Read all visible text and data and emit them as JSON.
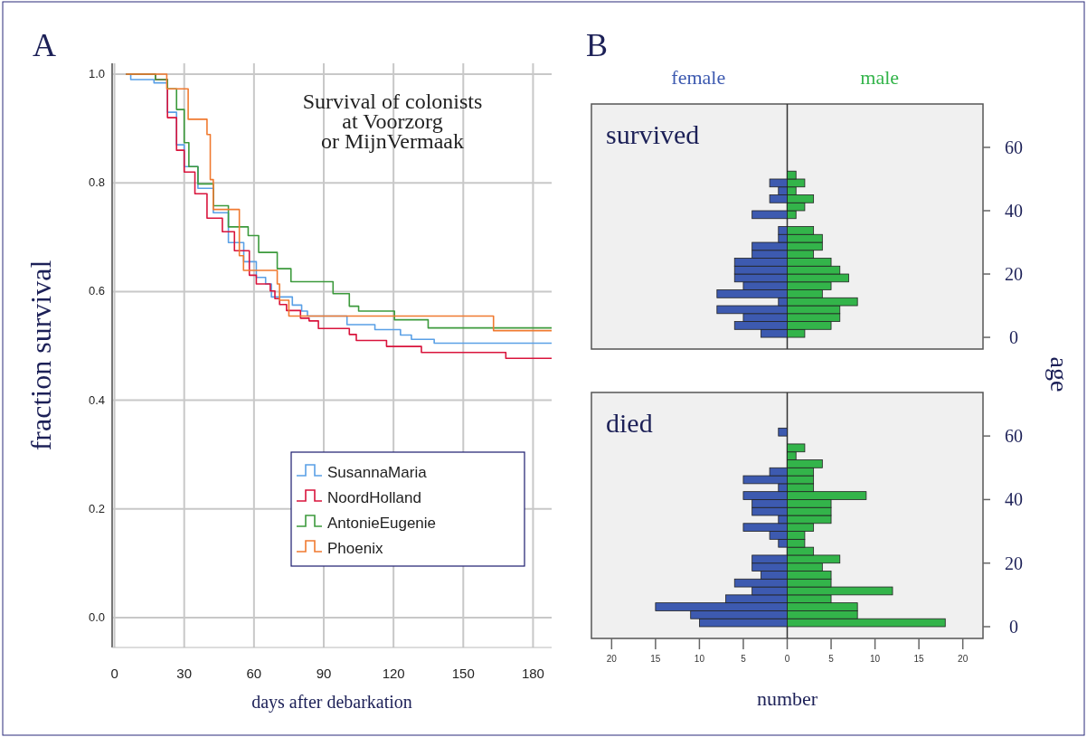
{
  "chart_data": [
    {
      "type": "step",
      "xlabel": "days after debarkation",
      "ylabel": "fraction survival",
      "annotations": [
        "A",
        "Survival of colonists\nat Voorzorg\nor MijnVermaak"
      ],
      "xlim": [
        -1,
        188
      ],
      "ylim": [
        -0.055,
        1.02
      ],
      "xticks": [
        0,
        30,
        60,
        90,
        120,
        150,
        180
      ],
      "yticks": [
        {
          "value": 0,
          "label": "0.0"
        },
        {
          "value": 0.2,
          "label": "0.2"
        },
        {
          "value": 0.4,
          "label": "0.4"
        },
        {
          "value": 0.6,
          "label": "0.6"
        },
        {
          "value": 0.8,
          "label": "0.8"
        },
        {
          "value": 1,
          "label": "1.0"
        }
      ],
      "grid": true,
      "legend": "bottom right",
      "series": [
        {
          "name": "SusannaMaria",
          "color": "#5aa0e6",
          "x": [
            5,
            7,
            17,
            22.8,
            26.7,
            30,
            35.9,
            42.5,
            49,
            55.6,
            61,
            65,
            67.5,
            76.5,
            80.5,
            83,
            100,
            112,
            123,
            127.7,
            137.5,
            188
          ],
          "values": [
            1,
            0.99,
            0.984,
            0.93,
            0.87,
            0.83,
            0.79,
            0.745,
            0.69,
            0.655,
            0.626,
            0.614,
            0.59,
            0.575,
            0.564,
            0.555,
            0.539,
            0.53,
            0.52,
            0.512,
            0.505,
            0.505
          ]
        },
        {
          "name": "NoordHolland",
          "color": "#d9143c",
          "x": [
            5,
            17.6,
            22.8,
            26.7,
            30,
            34.6,
            39.8,
            46.4,
            51.6,
            58,
            61,
            67,
            69,
            71,
            74,
            80,
            83.7,
            87.7,
            101,
            104,
            117,
            132,
            168.3,
            188
          ],
          "values": [
            1,
            0.99,
            0.92,
            0.86,
            0.82,
            0.78,
            0.735,
            0.71,
            0.675,
            0.63,
            0.614,
            0.601,
            0.587,
            0.576,
            0.565,
            0.551,
            0.546,
            0.532,
            0.521,
            0.51,
            0.499,
            0.488,
            0.477,
            0.477
          ]
        },
        {
          "name": "AntonieEugenie",
          "color": "#3c9a3c",
          "x": [
            5,
            17.6,
            22.8,
            26.7,
            30,
            32,
            35.9,
            42.5,
            49,
            57.5,
            62,
            70,
            75.9,
            94,
            101,
            105,
            120.4,
            134.9,
            188
          ],
          "values": [
            1,
            0.99,
            0.973,
            0.935,
            0.874,
            0.83,
            0.798,
            0.758,
            0.719,
            0.703,
            0.672,
            0.642,
            0.618,
            0.596,
            0.573,
            0.564,
            0.548,
            0.533,
            0.533
          ]
        },
        {
          "name": "Phoenix",
          "color": "#f07a30",
          "x": [
            5,
            22.5,
            31.7,
            39.8,
            41.2,
            42.5,
            53.7,
            55.5,
            70,
            71,
            75,
            163,
            188
          ],
          "values": [
            1,
            0.973,
            0.917,
            0.889,
            0.806,
            0.751,
            0.666,
            0.639,
            0.614,
            0.584,
            0.555,
            0.528,
            0.528
          ]
        }
      ]
    },
    {
      "type": "bar",
      "orientation": "horizontal",
      "stacked": true,
      "title": "survived",
      "ylabel": "age",
      "annotations": [
        "B"
      ],
      "legend": "top",
      "tick_labels": "y",
      "xlim": [
        -22.3,
        22.3
      ],
      "ylim": [
        -3.7,
        73.7
      ],
      "yticks": [
        0,
        20,
        40,
        60
      ],
      "x": [
        1.25,
        3.75,
        6.25,
        8.75,
        11.25,
        13.75,
        16.25,
        18.75,
        21.25,
        23.75,
        26.25,
        28.75,
        31.25,
        33.75,
        36.25,
        38.75,
        41.25,
        43.75,
        46.25,
        48.75,
        51.25
      ],
      "series": [
        {
          "name": "female",
          "color": "#3d5ab0",
          "values": [
            -3,
            -6,
            -5,
            -8,
            -1,
            -8,
            -5,
            -6,
            -6,
            -6,
            -4,
            -4,
            -1,
            -1,
            null,
            -4,
            null,
            -2,
            -1,
            -2,
            null
          ]
        },
        {
          "name": "male",
          "color": "#33b44a",
          "values": [
            2,
            5,
            6,
            6,
            8,
            4,
            5,
            7,
            6,
            5,
            3,
            4,
            4,
            3,
            null,
            1,
            2,
            3,
            1,
            2,
            1
          ]
        }
      ]
    },
    {
      "type": "bar",
      "orientation": "horizontal",
      "stacked": true,
      "title": "died",
      "xlabel": "number",
      "xlim": [
        -22.3,
        22.3
      ],
      "ylim": [
        -3.7,
        73.7
      ],
      "yticks": [
        0,
        20,
        40,
        60
      ],
      "xticks": [
        {
          "value": -20,
          "label": "20"
        },
        {
          "value": -15,
          "label": "15"
        },
        {
          "value": -10,
          "label": "10"
        },
        {
          "value": -5,
          "label": "5"
        },
        0,
        5,
        10,
        15,
        20
      ],
      "x": [
        1.25,
        3.75,
        6.25,
        8.75,
        11.25,
        13.75,
        16.25,
        18.75,
        21.25,
        23.75,
        26.25,
        28.75,
        31.25,
        33.75,
        36.25,
        38.75,
        41.25,
        43.75,
        46.25,
        48.75,
        51.25,
        53.75,
        56.25,
        58.75,
        61.25
      ],
      "series": [
        {
          "color": "#3d5ab0",
          "values": [
            -10,
            -11,
            -15,
            -7,
            -4,
            -6,
            -3,
            -4,
            -4,
            null,
            -1,
            -2,
            -5,
            -1,
            -4,
            -4,
            -5,
            -1,
            -5,
            -2,
            null,
            null,
            null,
            null,
            -1
          ]
        },
        {
          "color": "#33b44a",
          "values": [
            18,
            8,
            8,
            5,
            12,
            5,
            5,
            4,
            6,
            3,
            2,
            2,
            3,
            5,
            5,
            5,
            9,
            3,
            3,
            3,
            4,
            1,
            2,
            null,
            null
          ]
        }
      ]
    }
  ]
}
